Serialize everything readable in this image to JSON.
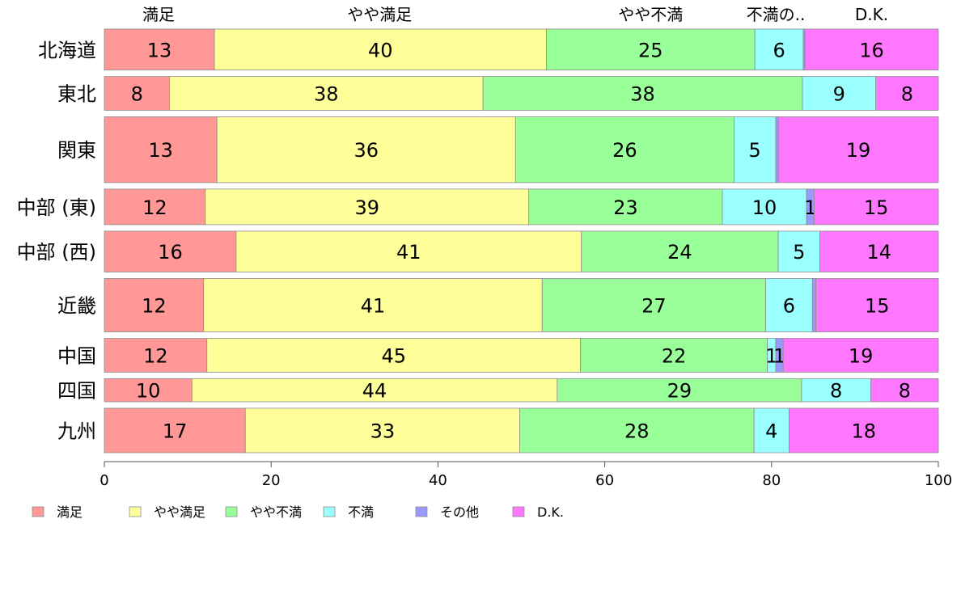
{
  "chart_data": {
    "type": "bar",
    "orientation": "horizontal",
    "stacked": true,
    "categories": [
      "北海道",
      "東北",
      "関東",
      "中部 (東)",
      "中部 (西)",
      "近畿",
      "中国",
      "四国",
      "九州"
    ],
    "category_weights": [
      1.15,
      0.95,
      1.85,
      1.0,
      1.15,
      1.5,
      0.95,
      0.65,
      1.25
    ],
    "series": [
      {
        "name": "満足",
        "color": "#ff9896",
        "values": [
          13.2,
          7.8,
          13.5,
          12.1,
          15.8,
          11.9,
          12.3,
          10.5,
          16.9
        ]
      },
      {
        "name": "やや満足",
        "color": "#ffff99",
        "values": [
          39.8,
          37.6,
          35.8,
          38.8,
          41.4,
          40.6,
          44.8,
          43.8,
          32.9
        ]
      },
      {
        "name": "やや不満",
        "color": "#99ff99",
        "values": [
          25.0,
          38.3,
          26.2,
          23.2,
          23.6,
          26.8,
          22.4,
          29.3,
          28.1
        ]
      },
      {
        "name": "不満",
        "color": "#99ffff",
        "values": [
          5.8,
          8.8,
          5.0,
          10.1,
          5.0,
          5.6,
          1.0,
          8.3,
          4.2
        ]
      },
      {
        "name": "その他",
        "color": "#9999ff",
        "values": [
          0.2,
          0.0,
          0.3,
          0.9,
          0.0,
          0.4,
          0.9,
          0.0,
          0.0
        ]
      },
      {
        "name": "D.K.",
        "color": "#ff77ff",
        "values": [
          16.0,
          7.5,
          19.2,
          14.9,
          14.2,
          14.7,
          18.6,
          8.1,
          17.9
        ]
      }
    ],
    "segment_labels": [
      [
        "13",
        "40",
        "25",
        "6",
        "",
        "16"
      ],
      [
        "8",
        "38",
        "38",
        "9",
        "",
        "8"
      ],
      [
        "13",
        "36",
        "26",
        "5",
        "",
        "19"
      ],
      [
        "12",
        "39",
        "23",
        "10",
        "1",
        "15"
      ],
      [
        "16",
        "41",
        "24",
        "5",
        "",
        "14"
      ],
      [
        "12",
        "41",
        "27",
        "6",
        "",
        "15"
      ],
      [
        "12",
        "45",
        "22",
        "1",
        "1",
        "19"
      ],
      [
        "10",
        "44",
        "29",
        "8",
        "",
        "8"
      ],
      [
        "17",
        "33",
        "28",
        "4",
        "",
        "18"
      ]
    ],
    "top_labels": [
      {
        "text": "満足",
        "at": 6.5
      },
      {
        "text": "やや満足",
        "at": 33.0
      },
      {
        "text": "やや不満",
        "at": 65.5
      },
      {
        "text": "不満の..",
        "at": 80.5
      },
      {
        "text": "D.K.",
        "at": 92.0
      }
    ],
    "xlim": [
      0,
      100
    ],
    "xticks": [
      0,
      20,
      40,
      60,
      80,
      100
    ],
    "xlabel": "",
    "ylabel": "",
    "legend": {
      "placement": "bottom",
      "entries": [
        "満足",
        "やや満足",
        "やや不満",
        "不満",
        "その他",
        "D.K."
      ]
    }
  }
}
